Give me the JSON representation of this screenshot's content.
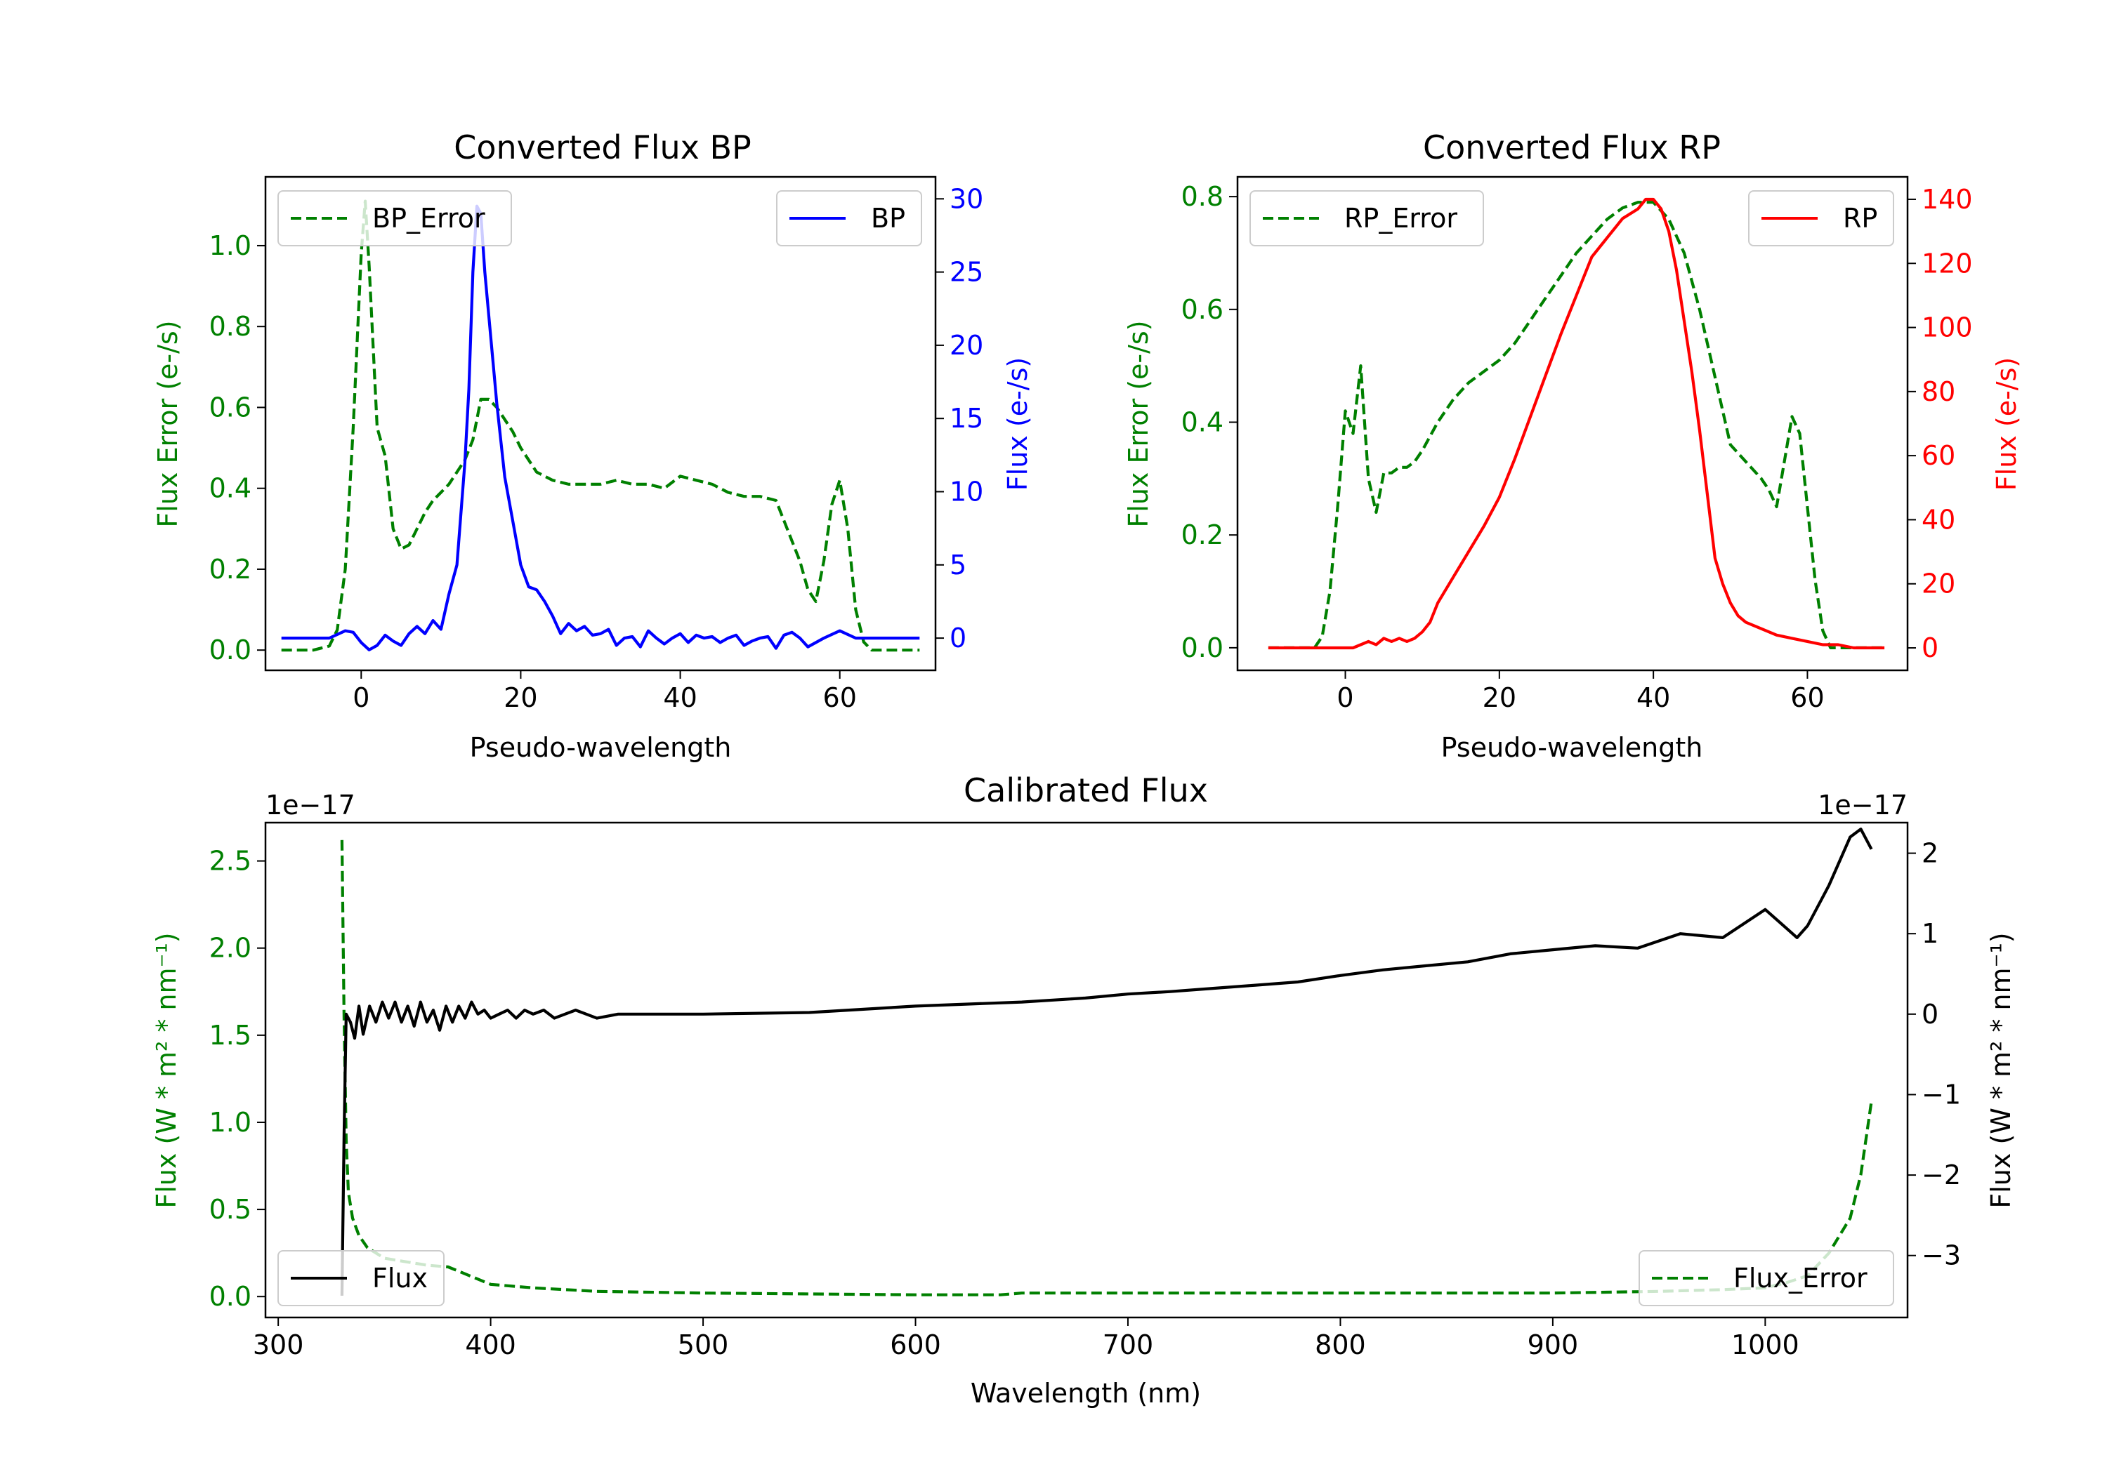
{
  "colors": {
    "error": "#008000",
    "bp": "#0000ff",
    "rp": "#ff0000",
    "flux": "#000000",
    "axis": "#000000"
  },
  "chart_data": [
    {
      "id": "bp",
      "type": "line",
      "title": "Converted Flux BP",
      "xlabel": "Pseudo-wavelength",
      "ylabel_left": "Flux Error (e-/s)",
      "ylabel_right": "Flux (e-/s)",
      "xlim": [
        -12,
        72
      ],
      "ylim_left": [
        -0.05,
        1.17
      ],
      "ylim_right": [
        -2.2,
        31.5
      ],
      "xticks": [
        0,
        20,
        40,
        60
      ],
      "yticks_left": [
        "0.0",
        "0.2",
        "0.4",
        "0.6",
        "0.8",
        "1.0"
      ],
      "yticks_right": [
        "0",
        "5",
        "10",
        "15",
        "20",
        "25",
        "30"
      ],
      "legend_left": {
        "label": "BP_Error",
        "position": "upper left"
      },
      "legend_right": {
        "label": "BP",
        "position": "upper right"
      },
      "series": [
        {
          "name": "BP_Error",
          "axis": "left",
          "style": "dashed",
          "color": "#008000",
          "x": [
            -10,
            -6,
            -4,
            -3,
            -2,
            -1,
            0,
            0.5,
            1,
            2,
            3,
            4,
            5,
            6,
            7,
            8,
            9,
            10,
            11,
            12,
            13,
            14,
            15,
            16,
            17,
            18,
            19,
            20,
            22,
            24,
            26,
            28,
            30,
            32,
            34,
            36,
            38,
            40,
            42,
            44,
            46,
            48,
            50,
            52,
            54,
            55,
            56,
            57,
            58,
            59,
            60,
            61,
            62,
            63,
            64,
            66,
            70
          ],
          "y": [
            0.0,
            0.0,
            0.01,
            0.05,
            0.2,
            0.55,
            0.98,
            1.11,
            0.95,
            0.55,
            0.48,
            0.3,
            0.25,
            0.26,
            0.3,
            0.34,
            0.37,
            0.39,
            0.41,
            0.44,
            0.47,
            0.52,
            0.62,
            0.62,
            0.6,
            0.57,
            0.54,
            0.5,
            0.44,
            0.42,
            0.41,
            0.41,
            0.41,
            0.42,
            0.41,
            0.41,
            0.4,
            0.43,
            0.42,
            0.41,
            0.39,
            0.38,
            0.38,
            0.37,
            0.27,
            0.22,
            0.15,
            0.12,
            0.22,
            0.36,
            0.42,
            0.3,
            0.1,
            0.02,
            0.0,
            0.0,
            0.0
          ]
        },
        {
          "name": "BP",
          "axis": "right",
          "style": "solid",
          "color": "#0000ff",
          "x": [
            -10,
            -4,
            -2,
            -1,
            0,
            1,
            2,
            3,
            4,
            5,
            6,
            7,
            8,
            9,
            10,
            11,
            12,
            13,
            13.5,
            14,
            14.5,
            15,
            15.5,
            16,
            17,
            18,
            19,
            20,
            21,
            22,
            23,
            24,
            25,
            26,
            27,
            28,
            29,
            30,
            31,
            32,
            33,
            34,
            35,
            36,
            37,
            38,
            39,
            40,
            41,
            42,
            43,
            44,
            45,
            46,
            47,
            48,
            49,
            50,
            51,
            52,
            53,
            54,
            55,
            56,
            58,
            60,
            62,
            64,
            66,
            68,
            70
          ],
          "y": [
            0,
            0,
            0.5,
            0.4,
            -0.3,
            -0.8,
            -0.5,
            0.2,
            -0.2,
            -0.5,
            0.3,
            0.8,
            0.3,
            1.2,
            0.6,
            3.0,
            5.0,
            12.0,
            17.0,
            25.0,
            29.5,
            29.0,
            25.0,
            22.0,
            16.0,
            11.0,
            8.0,
            5.0,
            3.5,
            3.3,
            2.5,
            1.5,
            0.3,
            1.0,
            0.5,
            0.8,
            0.2,
            0.3,
            0.6,
            -0.5,
            0.0,
            0.1,
            -0.6,
            0.5,
            0.0,
            -0.4,
            0.0,
            0.3,
            -0.3,
            0.2,
            0.0,
            0.1,
            -0.3,
            0.0,
            0.2,
            -0.5,
            -0.2,
            0.0,
            0.1,
            -0.7,
            0.2,
            0.4,
            0.0,
            -0.6,
            0.0,
            0.5,
            0.0,
            0.0,
            0.0,
            0.0,
            0.0
          ]
        }
      ]
    },
    {
      "id": "rp",
      "type": "line",
      "title": "Converted Flux RP",
      "xlabel": "Pseudo-wavelength",
      "ylabel_left": "Flux Error (e-/s)",
      "ylabel_right": "Flux (e-/s)",
      "xlim": [
        -14,
        73
      ],
      "ylim_left": [
        -0.04,
        0.835
      ],
      "ylim_right": [
        -7,
        147
      ],
      "xticks": [
        0,
        20,
        40,
        60
      ],
      "yticks_left": [
        "0.0",
        "0.2",
        "0.4",
        "0.6",
        "0.8"
      ],
      "yticks_right": [
        "0",
        "20",
        "40",
        "60",
        "80",
        "100",
        "120",
        "140"
      ],
      "legend_left": {
        "label": "RP_Error",
        "position": "upper left"
      },
      "legend_right": {
        "label": "RP",
        "position": "upper right"
      },
      "series": [
        {
          "name": "RP_Error",
          "axis": "left",
          "style": "dashed",
          "color": "#008000",
          "x": [
            -10,
            -4,
            -3,
            -2,
            -1,
            0,
            1,
            2,
            3,
            4,
            5,
            6,
            7,
            8,
            9,
            10,
            12,
            14,
            16,
            18,
            20,
            22,
            24,
            26,
            28,
            30,
            32,
            34,
            36,
            38,
            39,
            40,
            42,
            44,
            46,
            48,
            50,
            52,
            54,
            55,
            56,
            57,
            58,
            59,
            60,
            61,
            62,
            63,
            64,
            66,
            70
          ],
          "y": [
            0.0,
            0.0,
            0.02,
            0.1,
            0.25,
            0.42,
            0.38,
            0.5,
            0.3,
            0.24,
            0.31,
            0.31,
            0.32,
            0.32,
            0.33,
            0.35,
            0.4,
            0.44,
            0.47,
            0.49,
            0.51,
            0.54,
            0.58,
            0.62,
            0.66,
            0.7,
            0.73,
            0.76,
            0.78,
            0.79,
            0.79,
            0.79,
            0.76,
            0.7,
            0.6,
            0.48,
            0.36,
            0.33,
            0.3,
            0.28,
            0.25,
            0.33,
            0.41,
            0.38,
            0.25,
            0.12,
            0.03,
            0.0,
            0.0,
            0.0,
            0.0
          ]
        },
        {
          "name": "RP",
          "axis": "right",
          "style": "solid",
          "color": "#ff0000",
          "x": [
            -10,
            -4,
            0,
            1,
            2,
            3,
            4,
            5,
            6,
            7,
            8,
            9,
            10,
            11,
            12,
            14,
            16,
            18,
            20,
            22,
            24,
            26,
            28,
            30,
            32,
            34,
            36,
            38,
            39,
            40,
            41,
            42,
            43,
            44,
            45,
            46,
            47,
            48,
            49,
            50,
            51,
            52,
            54,
            56,
            58,
            60,
            62,
            64,
            66,
            70
          ],
          "y": [
            0,
            0,
            0,
            0,
            1,
            2,
            1,
            3,
            2,
            3,
            2,
            3,
            5,
            8,
            14,
            22,
            30,
            38,
            47,
            59,
            72,
            85,
            98,
            110,
            122,
            128,
            134,
            137,
            140,
            140,
            137,
            130,
            118,
            102,
            86,
            68,
            48,
            28,
            20,
            14,
            10,
            8,
            6,
            4,
            3,
            2,
            1,
            1,
            0,
            0
          ]
        }
      ]
    },
    {
      "id": "calibrated",
      "type": "line",
      "title": "Calibrated Flux",
      "xlabel": "Wavelength (nm)",
      "ylabel_left": "Flux (W * m² * nm⁻¹)",
      "ylabel_right": "Flux (W * m² * nm⁻¹)",
      "offset_left": "1e−17",
      "offset_right": "1e−17",
      "xlim": [
        294,
        1067
      ],
      "ylim_left": [
        -0.12,
        2.72
      ],
      "ylim_right": [
        -3.77,
        2.38
      ],
      "xticks": [
        300,
        400,
        500,
        600,
        700,
        800,
        900,
        1000
      ],
      "yticks_left": [
        "0.0",
        "0.5",
        "1.0",
        "1.5",
        "2.0",
        "2.5"
      ],
      "yticks_right": [
        "2",
        "1",
        "0",
        "−1",
        "−2",
        "−3"
      ],
      "yticks_right_values": [
        2,
        1,
        0,
        -1,
        -2,
        -3
      ],
      "legend_left": {
        "label": "Flux",
        "position": "lower left"
      },
      "legend_right": {
        "label": "Flux_Error",
        "position": "lower right"
      },
      "series": [
        {
          "name": "Flux_Error",
          "axis": "left",
          "style": "dashed",
          "color": "#008000",
          "x": [
            330,
            331,
            332,
            333,
            335,
            338,
            342,
            350,
            360,
            370,
            380,
            390,
            400,
            420,
            450,
            500,
            600,
            640,
            650,
            700,
            800,
            900,
            950,
            980,
            1000,
            1010,
            1020,
            1030,
            1035,
            1040,
            1045,
            1048,
            1050
          ],
          "y": [
            2.62,
            1.6,
            0.9,
            0.6,
            0.45,
            0.35,
            0.28,
            0.22,
            0.2,
            0.18,
            0.17,
            0.12,
            0.07,
            0.05,
            0.03,
            0.02,
            0.01,
            0.01,
            0.02,
            0.02,
            0.02,
            0.02,
            0.03,
            0.04,
            0.05,
            0.08,
            0.12,
            0.25,
            0.35,
            0.45,
            0.7,
            0.95,
            1.12
          ]
        },
        {
          "name": "Flux",
          "axis": "right",
          "style": "solid",
          "color": "#000000",
          "x": [
            330,
            331,
            332,
            334,
            336,
            338,
            340,
            343,
            346,
            349,
            352,
            355,
            358,
            361,
            364,
            367,
            370,
            373,
            376,
            379,
            382,
            385,
            388,
            391,
            394,
            397,
            400,
            404,
            408,
            412,
            416,
            420,
            425,
            430,
            435,
            440,
            445,
            450,
            460,
            480,
            500,
            550,
            600,
            650,
            680,
            700,
            720,
            740,
            760,
            780,
            800,
            820,
            840,
            860,
            880,
            900,
            920,
            940,
            960,
            980,
            1000,
            1015,
            1020,
            1030,
            1040,
            1045,
            1050
          ],
          "y": [
            -3.5,
            -1.5,
            0.0,
            -0.1,
            -0.3,
            0.1,
            -0.25,
            0.1,
            -0.1,
            0.15,
            -0.05,
            0.15,
            -0.1,
            0.1,
            -0.15,
            0.15,
            -0.1,
            0.05,
            -0.2,
            0.1,
            -0.1,
            0.1,
            -0.05,
            0.15,
            0.0,
            0.05,
            -0.05,
            0.0,
            0.05,
            -0.05,
            0.05,
            0.0,
            0.05,
            -0.05,
            0.0,
            0.05,
            0.0,
            -0.05,
            0.0,
            0.0,
            0.0,
            0.02,
            0.1,
            0.15,
            0.2,
            0.25,
            0.28,
            0.32,
            0.36,
            0.4,
            0.48,
            0.55,
            0.6,
            0.65,
            0.75,
            0.8,
            0.85,
            0.82,
            1.0,
            0.95,
            1.3,
            0.95,
            1.1,
            1.6,
            2.2,
            2.3,
            2.05
          ]
        }
      ]
    }
  ]
}
